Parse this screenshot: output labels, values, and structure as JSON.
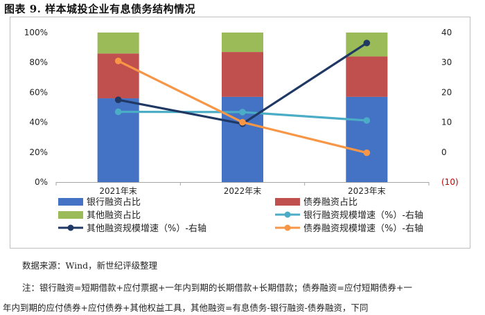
{
  "title": "图表 9.  样本城投企业有息债务结构情况",
  "source": "数据来源：Wind，新世纪评级整理",
  "note_line1": "注：银行融资=短期借款+应付票据+一年内到期的长期借款+长期借款；债券融资=应付短期债券+一",
  "note_line2": "年内到期的应付债券+应付债券+其他权益工具，其他融资=有息债务-银行融资-债券融资，下同",
  "chart_data": {
    "type": "bar",
    "stacked": true,
    "categories": [
      "2021年末",
      "2022年末",
      "2023年末"
    ],
    "series": [
      {
        "name": "银行融资占比",
        "type": "bar",
        "axis": "left",
        "color": "#4472C4",
        "values": [
          56,
          57,
          57
        ]
      },
      {
        "name": "债券融资占比",
        "type": "bar",
        "axis": "left",
        "color": "#C0504D",
        "values": [
          30,
          30,
          27
        ]
      },
      {
        "name": "其他融资占比",
        "type": "bar",
        "axis": "left",
        "color": "#9BBB59",
        "values": [
          14,
          13,
          16
        ]
      },
      {
        "name": "银行融资规模增速（%）-右轴",
        "type": "line",
        "axis": "right",
        "color": "#4BACC6",
        "values": [
          13.5,
          13.4,
          10.6
        ]
      },
      {
        "name": "其他融资规模增速（%）-右轴",
        "type": "line",
        "axis": "right",
        "color": "#1F3864",
        "values": [
          17.5,
          9.5,
          36.5
        ]
      },
      {
        "name": "债券融资规模增速（%）-右轴",
        "type": "line",
        "axis": "right",
        "color": "#F79646",
        "values": [
          30.5,
          10,
          -0.2
        ]
      }
    ],
    "left_axis": {
      "min": 0,
      "max": 100,
      "ticks": [
        "0%",
        "20%",
        "40%",
        "60%",
        "80%",
        "100%"
      ]
    },
    "right_axis": {
      "min": -10,
      "max": 40,
      "ticks": [
        "(10)",
        "0",
        "10",
        "20",
        "30",
        "40"
      ],
      "negative_color": "#C00000"
    },
    "legend_rows": [
      [
        "银行融资占比",
        "债券融资占比"
      ],
      [
        "其他融资占比",
        "银行融资规模增速（%）-右轴"
      ],
      [
        "其他融资规模增速（%）-右轴",
        "债券融资规模增速（%）-右轴"
      ]
    ],
    "grid": false,
    "legend_position": "bottom"
  }
}
